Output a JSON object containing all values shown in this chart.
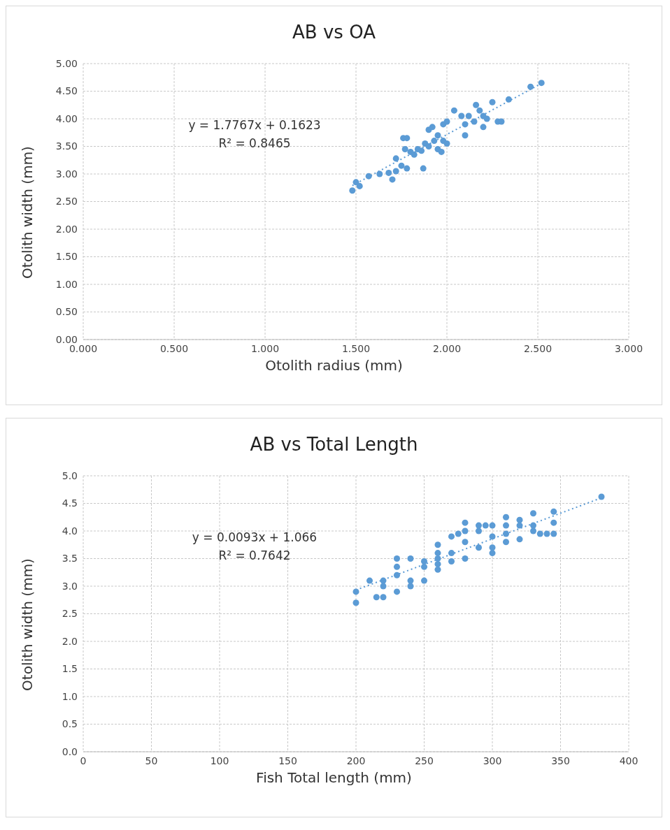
{
  "chart_data": [
    {
      "type": "scatter",
      "title": "AB vs OA",
      "xlabel": "Otolith radius (mm)",
      "ylabel": "Otolith width (mm)",
      "xlim": [
        0,
        3
      ],
      "xticks": [
        {
          "value": 0,
          "label": "0.000"
        },
        {
          "value": 0.5,
          "label": "0.500"
        },
        {
          "value": 1,
          "label": "1.000"
        },
        {
          "value": 1.5,
          "label": "1.500"
        },
        {
          "value": 2,
          "label": "2.000"
        },
        {
          "value": 2.5,
          "label": "2.500"
        },
        {
          "value": 3,
          "label": "3.000"
        }
      ],
      "ylim": [
        0,
        5
      ],
      "yticks": [
        {
          "value": 0,
          "label": "0.00"
        },
        {
          "value": 0.5,
          "label": "0.50"
        },
        {
          "value": 1,
          "label": "1.00"
        },
        {
          "value": 1.5,
          "label": "1.50"
        },
        {
          "value": 2,
          "label": "2.00"
        },
        {
          "value": 2.5,
          "label": "2.50"
        },
        {
          "value": 3,
          "label": "3.00"
        },
        {
          "value": 3.5,
          "label": "3.50"
        },
        {
          "value": 4,
          "label": "4.00"
        },
        {
          "value": 4.5,
          "label": "4.50"
        },
        {
          "value": 5,
          "label": "5.00"
        }
      ],
      "grid": true,
      "marker": "circle",
      "line_style": "dotted",
      "annotations": [
        "y = 1.7767x + 0.1623",
        "R² = 0.8465"
      ],
      "series": [
        {
          "color": "#5b9bd5",
          "x": [
            1.48,
            1.5,
            1.52,
            1.57,
            1.63,
            1.68,
            1.7,
            1.72,
            1.72,
            1.75,
            1.76,
            1.78,
            1.77,
            1.78,
            1.8,
            1.82,
            1.84,
            1.86,
            1.87,
            1.88,
            1.9,
            1.9,
            1.92,
            1.93,
            1.95,
            1.95,
            1.97,
            1.98,
            1.98,
            2.0,
            2.0,
            2.04,
            2.08,
            2.1,
            2.1,
            2.12,
            2.15,
            2.16,
            2.18,
            2.2,
            2.2,
            2.22,
            2.25,
            2.28,
            2.3,
            2.34,
            2.46,
            2.52
          ],
          "values": [
            2.7,
            2.85,
            2.78,
            2.96,
            3.0,
            3.02,
            2.9,
            3.05,
            3.28,
            3.15,
            3.65,
            3.65,
            3.45,
            3.1,
            3.4,
            3.35,
            3.45,
            3.42,
            3.1,
            3.55,
            3.8,
            3.5,
            3.85,
            3.6,
            3.7,
            3.45,
            3.4,
            3.9,
            3.6,
            3.95,
            3.55,
            4.15,
            4.05,
            3.7,
            3.9,
            4.05,
            3.95,
            4.25,
            4.15,
            3.85,
            4.05,
            4.0,
            4.3,
            3.95,
            3.95,
            4.35,
            4.58,
            4.65
          ]
        },
        {
          "type": "line",
          "marker": "none",
          "color": "#5b9bd5",
          "x": [
            1.48,
            2.52
          ],
          "values": [
            2.79,
            4.64
          ]
        }
      ]
    },
    {
      "type": "scatter",
      "title": "AB vs Total Length",
      "xlabel": "Fish Total length (mm)",
      "ylabel": "Otolith width (mm)",
      "xlim": [
        0,
        400
      ],
      "xticks": [
        0,
        50,
        100,
        150,
        200,
        250,
        300,
        350,
        400
      ],
      "ylim": [
        0,
        5
      ],
      "yticks": [
        {
          "value": 0,
          "label": "0.0"
        },
        {
          "value": 0.5,
          "label": "0.5"
        },
        {
          "value": 1,
          "label": "1.0"
        },
        {
          "value": 1.5,
          "label": "1.5"
        },
        {
          "value": 2,
          "label": "2.0"
        },
        {
          "value": 2.5,
          "label": "2.5"
        },
        {
          "value": 3,
          "label": "3.0"
        },
        {
          "value": 3.5,
          "label": "3.5"
        },
        {
          "value": 4,
          "label": "4.0"
        },
        {
          "value": 4.5,
          "label": "4.5"
        },
        {
          "value": 5,
          "label": "5.0"
        }
      ],
      "grid": true,
      "marker": "circle",
      "line_style": "dotted",
      "annotations": [
        "y = 0.0093x + 1.066",
        "R² = 0.7642"
      ],
      "series": [
        {
          "color": "#5b9bd5",
          "x": [
            200,
            200,
            210,
            215,
            220,
            220,
            220,
            230,
            230,
            230,
            230,
            240,
            240,
            240,
            250,
            250,
            250,
            260,
            260,
            260,
            260,
            260,
            270,
            270,
            270,
            275,
            280,
            280,
            280,
            280,
            290,
            290,
            290,
            295,
            300,
            300,
            300,
            300,
            310,
            310,
            310,
            310,
            320,
            320,
            320,
            330,
            330,
            330,
            335,
            340,
            345,
            345,
            345,
            380
          ],
          "values": [
            2.9,
            2.7,
            3.1,
            2.8,
            3.1,
            3.0,
            2.8,
            3.5,
            3.35,
            3.2,
            2.9,
            3.5,
            3.1,
            3.0,
            3.45,
            3.35,
            3.1,
            3.75,
            3.6,
            3.5,
            3.4,
            3.3,
            3.9,
            3.6,
            3.45,
            3.95,
            4.15,
            4.0,
            3.8,
            3.5,
            4.1,
            4.0,
            3.7,
            4.1,
            4.1,
            3.9,
            3.7,
            3.6,
            4.25,
            4.1,
            3.95,
            3.8,
            4.2,
            4.1,
            3.85,
            4.32,
            4.1,
            4.0,
            3.95,
            3.95,
            4.35,
            4.15,
            3.95,
            4.62
          ]
        },
        {
          "type": "line",
          "marker": "none",
          "color": "#5b9bd5",
          "x": [
            200,
            380
          ],
          "values": [
            2.93,
            4.6
          ]
        }
      ]
    }
  ]
}
